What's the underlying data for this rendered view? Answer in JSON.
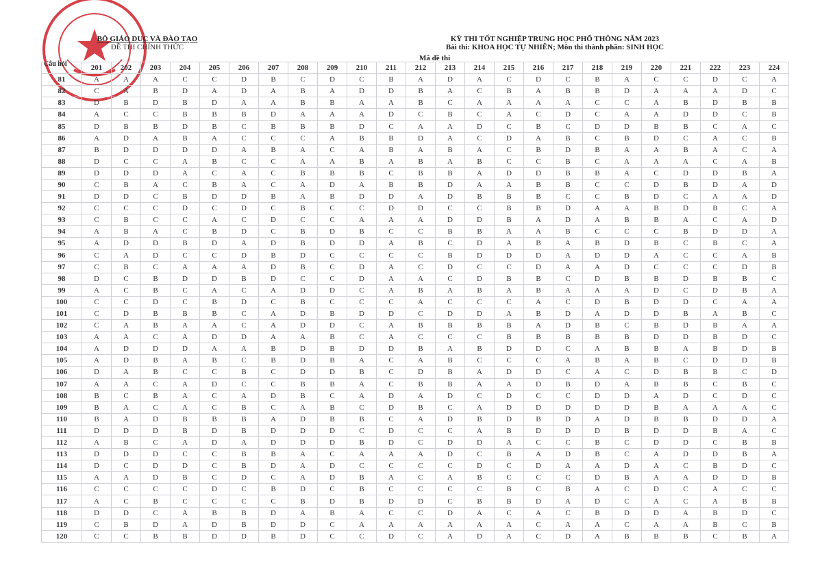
{
  "header_left": {
    "ministry": "BỘ GIÁO DỤC VÀ ĐÀO TẠO",
    "doc_type": "ĐỀ THI CHÍNH THỨC"
  },
  "header_right": {
    "exam": "KỲ THI TỐT NGHIỆP TRUNG HỌC PHỔ THÔNG NĂM 2023",
    "subject": "Bài thi:  KHOA HỌC TỰ NHIÊN; Môn thi thành phần: SINH HỌC"
  },
  "stamp": {
    "text": "BỘ GIÁO DỤC VÀ ĐÀO TẠO",
    "color": "#d0202a"
  },
  "table": {
    "question_header": "Câu hỏi",
    "code_header": "Mã đề thi",
    "codes": [
      "201",
      "202",
      "203",
      "204",
      "205",
      "206",
      "207",
      "208",
      "209",
      "210",
      "211",
      "212",
      "213",
      "214",
      "215",
      "216",
      "217",
      "218",
      "219",
      "220",
      "221",
      "222",
      "223",
      "224"
    ],
    "rows": [
      {
        "q": "81",
        "answers": "AAACCDBCDCBADACDCBACCDCA"
      },
      {
        "q": "82",
        "answers": "CABDADABADDBACBABBDAAADC"
      },
      {
        "q": "83",
        "answers": "DBDBDAABBAABCAAAACCABDBB"
      },
      {
        "q": "84",
        "answers": "ACCBBBDAAADCBCACDCAADDCB"
      },
      {
        "q": "85",
        "answers": "DBBDBCBBBDCAADCBCDDBBCAC"
      },
      {
        "q": "86",
        "answers": "ADABACCCABBDACDABCBDCACB"
      },
      {
        "q": "87",
        "answers": "BDDDDABACABABACBDBAABACA"
      },
      {
        "q": "88",
        "answers": "DCCABCCAABABABCCBCAAACAB"
      },
      {
        "q": "89",
        "answers": "DDDACACBBBCBBADDBBACDDBA"
      },
      {
        "q": "90",
        "answers": "CBACBACADABBDAABBCCDBDAD"
      },
      {
        "q": "91",
        "answers": "DDCBDDBABDDADBBBCCBDCAAD"
      },
      {
        "q": "92",
        "answers": "CCCDCDCBCCDDCCBBDAABDBCA"
      },
      {
        "q": "93",
        "answers": "CBCCACDCCAAADDBADABBACAD"
      },
      {
        "q": "94",
        "answers": "ABACBDCBDBCCBBAABCCCBDDA"
      },
      {
        "q": "95",
        "answers": "ADDBDADBDDABCDABABDBCBCA"
      },
      {
        "q": "96",
        "answers": "CADCCDBDCCCCBDDDADDACCAB"
      },
      {
        "q": "97",
        "answers": "CBCAAADBCDACDCCDAADCCCDB"
      },
      {
        "q": "98",
        "answers": "DCBDDBDCCDAACDBBCDBBDBBC"
      },
      {
        "q": "99",
        "answers": "ACBCACADDCABABABAAADCDBA"
      },
      {
        "q": "100",
        "answers": "CCDCBDCBCCCACCCACDBDDCAA"
      },
      {
        "q": "101",
        "answers": "CDBBBCADBDDCDDABDADDBABC"
      },
      {
        "q": "102",
        "answers": "CABAACADDCABBBBADBCBDBAA"
      },
      {
        "q": "103",
        "answers": "AACADDAABCACCCBBBBBDDBDC"
      },
      {
        "q": "104",
        "answers": "ADDDAABDBDDBABDDCABBABDB"
      },
      {
        "q": "105",
        "answers": "ADBABCBDBACABCCCABABCDDB"
      },
      {
        "q": "106",
        "answers": "DABCCBCDDBCDBADDCACDBBCD"
      },
      {
        "q": "107",
        "answers": "AACADCCBBACBBAADBDABBCBC"
      },
      {
        "q": "108",
        "answers": "BCBACADBCADADCDCCDDADCDC"
      },
      {
        "q": "109",
        "answers": "BACACBCABCDBCADDDDDBAAAC"
      },
      {
        "q": "110",
        "answers": "BADBBBADBBCADBDBDADBBDDA"
      },
      {
        "q": "111",
        "answers": "DDDBDBDDDCDCCABDDDBDDBAC"
      },
      {
        "q": "112",
        "answers": "ABCADADDDBDCDDACCBCDDCBB"
      },
      {
        "q": "113",
        "answers": "DDDCCBBACAAADCBADBCADDBA"
      },
      {
        "q": "114",
        "answers": "DCDDCBDADCCCCDCDAADACBDC"
      },
      {
        "q": "115",
        "answers": "AADBCDCADBACABCCCDBAADDB"
      },
      {
        "q": "116",
        "answers": "CCCCDCBDCBCCCCBCBACDCACC"
      },
      {
        "q": "117",
        "answers": "ACBCCCCBDBDDCBBDADCACABB"
      },
      {
        "q": "118",
        "answers": "DDCABBDABACCDACACBDDABDC"
      },
      {
        "q": "119",
        "answers": "CBDADBDDCAAAAAACAACAABCB"
      },
      {
        "q": "120",
        "answers": "CCBBDDBDCCDCADACDABBBCBA"
      }
    ]
  }
}
